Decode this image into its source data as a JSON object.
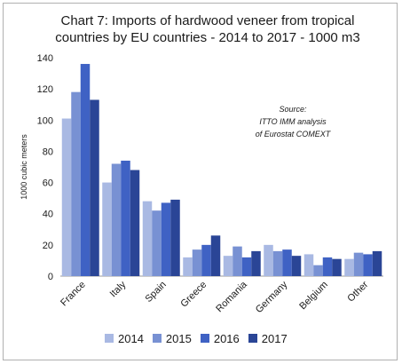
{
  "chart_data": {
    "type": "bar",
    "title": "Chart 7: Imports of hardwood veneer from tropical countries by EU countries - 2014 to 2017 - 1000 m3",
    "title_line1": "Chart 7: Imports of hardwood veneer from tropical",
    "title_line2": "countries by EU countries - 2014 to 2017 - 1000 m3",
    "ylabel": "1000 cubic meters",
    "xlabel": "",
    "ylim": [
      0,
      140
    ],
    "yticks": [
      0,
      20,
      40,
      60,
      80,
      100,
      120,
      140
    ],
    "grid": false,
    "legend_position": "bottom",
    "source_line1": "Source:",
    "source_line2": "ITTO IMM analysis",
    "source_line3": "of Eurostat COMEXT",
    "categories": [
      "France",
      "Italy",
      "Spain",
      "Greece",
      "Romania",
      "Germany",
      "Belgium",
      "Other"
    ],
    "series": [
      {
        "name": "2014",
        "color": "#a9b9e3",
        "values": [
          101,
          60,
          48,
          12,
          13,
          20,
          14,
          11
        ]
      },
      {
        "name": "2015",
        "color": "#7891d3",
        "values": [
          118,
          72,
          42,
          17,
          19,
          16,
          7,
          15
        ]
      },
      {
        "name": "2016",
        "color": "#3f62c4",
        "values": [
          136,
          74,
          47,
          20,
          12,
          17,
          12,
          14
        ]
      },
      {
        "name": "2017",
        "color": "#2a4596",
        "values": [
          113,
          68,
          49,
          26,
          16,
          13,
          11,
          16
        ]
      }
    ]
  }
}
